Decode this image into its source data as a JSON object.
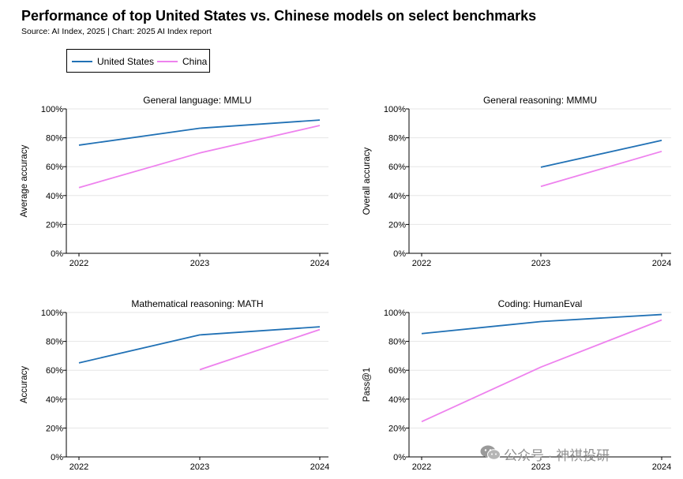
{
  "title": "Performance of top United States vs. Chinese models on select benchmarks",
  "source": "Source: AI Index, 2025 | Chart: 2025 AI Index report",
  "legend": [
    {
      "name": "United States",
      "color": "#2171b5"
    },
    {
      "name": "China",
      "color": "#ee82ee"
    }
  ],
  "watermark": "公众号 · 神祺投研",
  "chart_data": [
    {
      "type": "line",
      "title": "General language: MMLU",
      "xlabel": "",
      "ylabel": "Average accuracy",
      "x": [
        "2022",
        "2023",
        "2024"
      ],
      "yticks": [
        "0%",
        "20%",
        "40%",
        "60%",
        "80%",
        "100%"
      ],
      "ylim": [
        0,
        100
      ],
      "series": [
        {
          "name": "United States",
          "color": "#2171b5",
          "values": [
            74.9,
            86.6,
            92.3
          ]
        },
        {
          "name": "China",
          "color": "#ee82ee",
          "values": [
            45.5,
            69.5,
            88.5
          ]
        }
      ]
    },
    {
      "type": "line",
      "title": "General reasoning: MMMU",
      "xlabel": "",
      "ylabel": "Overall accuracy",
      "x": [
        "2022",
        "2023",
        "2024"
      ],
      "yticks": [
        "0%",
        "20%",
        "40%",
        "60%",
        "80%",
        "100%"
      ],
      "ylim": [
        0,
        100
      ],
      "series": [
        {
          "name": "United States",
          "color": "#2171b5",
          "values": [
            null,
            59.6,
            78.2
          ]
        },
        {
          "name": "China",
          "color": "#ee82ee",
          "values": [
            null,
            46.3,
            70.6
          ]
        }
      ]
    },
    {
      "type": "line",
      "title": "Mathematical reasoning: MATH",
      "xlabel": "",
      "ylabel": "Accuracy",
      "x": [
        "2022",
        "2023",
        "2024"
      ],
      "yticks": [
        "0%",
        "20%",
        "40%",
        "60%",
        "80%",
        "100%"
      ],
      "ylim": [
        0,
        100
      ],
      "series": [
        {
          "name": "United States",
          "color": "#2171b5",
          "values": [
            65.1,
            84.5,
            90.1
          ]
        },
        {
          "name": "China",
          "color": "#ee82ee",
          "values": [
            null,
            60.4,
            88.2
          ]
        }
      ]
    },
    {
      "type": "line",
      "title": "Coding: HumanEval",
      "xlabel": "",
      "ylabel": "Pass@1",
      "x": [
        "2022",
        "2023",
        "2024"
      ],
      "yticks": [
        "0%",
        "20%",
        "40%",
        "60%",
        "80%",
        "100%"
      ],
      "ylim": [
        0,
        100
      ],
      "series": [
        {
          "name": "United States",
          "color": "#2171b5",
          "values": [
            85.4,
            93.7,
            98.6
          ]
        },
        {
          "name": "China",
          "color": "#ee82ee",
          "values": [
            24.4,
            62.2,
            94.8
          ]
        }
      ]
    }
  ]
}
